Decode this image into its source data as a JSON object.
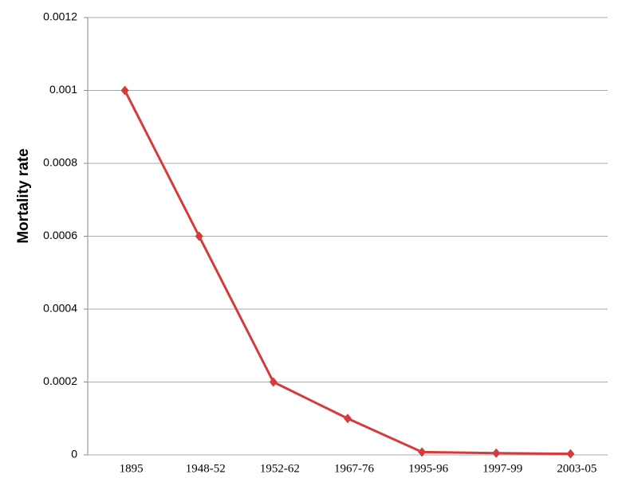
{
  "chart_data": {
    "type": "line",
    "y_label": "Mortality rate",
    "categories": [
      "1895",
      "1948-52",
      "1952-62",
      "1967-76",
      "1995-96",
      "1997-99",
      "2003-05"
    ],
    "values": [
      0.001,
      0.0006,
      0.0002,
      0.0001,
      8e-06,
      5e-06,
      3e-06
    ],
    "color": "#d63b3b",
    "ylim": [
      0,
      0.0012
    ],
    "yticks": [
      0,
      0.0002,
      0.0004,
      0.0006,
      0.0008,
      0.001,
      0.0012
    ],
    "grid": true
  }
}
